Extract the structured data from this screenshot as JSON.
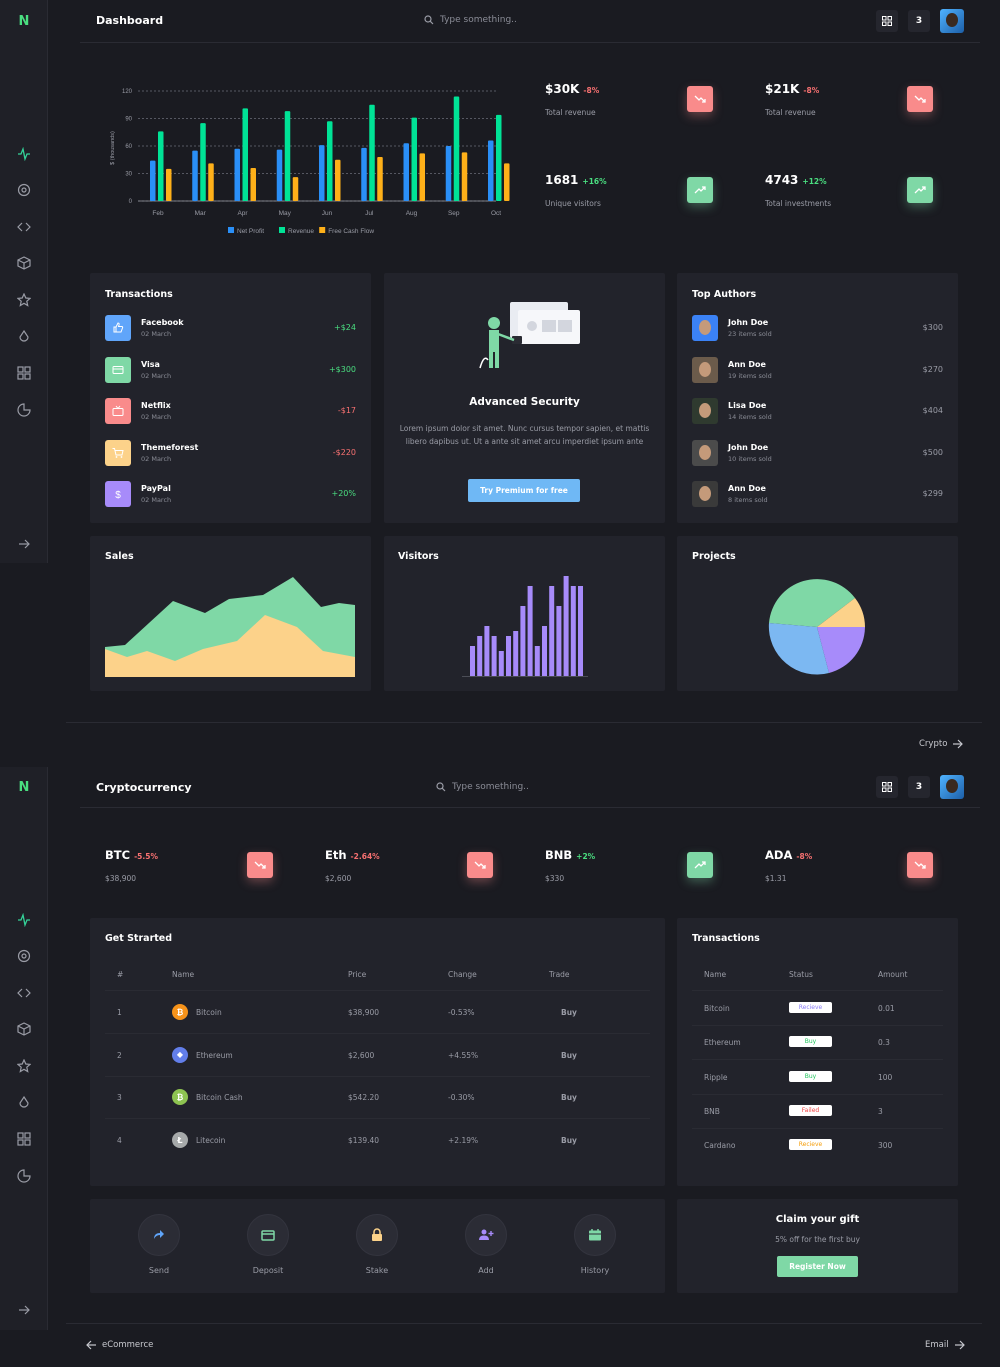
{
  "brand": {
    "logo_letter": "N",
    "accent": "#4ade80"
  },
  "dashboard": {
    "title": "Dashboard",
    "search_placeholder": "Type something..",
    "notif_count": "3",
    "chart_data": {
      "type": "bar",
      "categories": [
        "Feb",
        "Mar",
        "Apr",
        "May",
        "Jun",
        "Jul",
        "Aug",
        "Sep",
        "Oct"
      ],
      "series": [
        {
          "name": "Net Profit",
          "color": "#2a8ff7",
          "values": [
            44,
            55,
            57,
            56,
            61,
            58,
            63,
            60,
            66
          ]
        },
        {
          "name": "Revenue",
          "color": "#00e396",
          "values": [
            76,
            85,
            101,
            98,
            87,
            105,
            91,
            114,
            94
          ]
        },
        {
          "name": "Free Cash Flow",
          "color": "#feb019",
          "values": [
            35,
            41,
            36,
            26,
            45,
            48,
            52,
            53,
            41
          ]
        }
      ],
      "ylabel": "$ (thousands)",
      "yticks": [
        "0",
        "30",
        "60",
        "90",
        "120"
      ],
      "ylim": [
        0,
        120
      ]
    },
    "stats": [
      {
        "value": "$30K",
        "change": "-8%",
        "label": "Total revenue",
        "trend": "down"
      },
      {
        "value": "$21K",
        "change": "-8%",
        "label": "Total revenue",
        "trend": "down"
      },
      {
        "value": "1681",
        "change": "+16%",
        "label": "Unique visitors",
        "trend": "up"
      },
      {
        "value": "4743",
        "change": "+12%",
        "label": "Total investments",
        "trend": "up"
      }
    ],
    "transactions": {
      "title": "Transactions",
      "items": [
        {
          "name": "Facebook",
          "date": "02 March",
          "amount": "+$24",
          "color": "#60a5fa",
          "icon": "thumbs-up-icon"
        },
        {
          "name": "Visa",
          "date": "02 March",
          "amount": "+$300",
          "color": "#7fd8a6",
          "icon": "credit-card-icon"
        },
        {
          "name": "Netflix",
          "date": "02 March",
          "amount": "-$17",
          "color": "#f98b8b",
          "icon": "tv-icon"
        },
        {
          "name": "Themeforest",
          "date": "02 March",
          "amount": "-$220",
          "color": "#fcd28a",
          "icon": "cart-icon"
        },
        {
          "name": "PayPal",
          "date": "02 March",
          "amount": "+20%",
          "color": "#a78bfa",
          "icon": "dollar-icon"
        }
      ]
    },
    "security": {
      "title": "Advanced Security",
      "text": "Lorem ipsum dolor sit amet. Nunc cursus tempor sapien, et mattis libero dapibus ut. Ut a ante sit amet arcu imperdiet ipsum ante",
      "button": "Try Premium for free"
    },
    "authors": {
      "title": "Top Authors",
      "items": [
        {
          "name": "John Doe",
          "sold": "23 items sold",
          "amount": "$300"
        },
        {
          "name": "Ann Doe",
          "sold": "19 items sold",
          "amount": "$270"
        },
        {
          "name": "Lisa Doe",
          "sold": "14 items sold",
          "amount": "$404"
        },
        {
          "name": "John Doe",
          "sold": "10 items sold",
          "amount": "$500"
        },
        {
          "name": "Ann Doe",
          "sold": "8 items sold",
          "amount": "$299"
        }
      ]
    },
    "sales_title": "Sales",
    "visitors_title": "Visitors",
    "projects_title": "Projects",
    "next_link": "Crypto"
  },
  "crypto": {
    "title": "Cryptocurrency",
    "search_placeholder": "Type something..",
    "notif_count": "3",
    "coins": [
      {
        "symbol": "BTC",
        "change": "-5.5%",
        "price": "$38,900",
        "trend": "down"
      },
      {
        "symbol": "Eth",
        "change": "-2.64%",
        "price": "$2,600",
        "trend": "down"
      },
      {
        "symbol": "BNB",
        "change": "+2%",
        "price": "$330",
        "trend": "up"
      },
      {
        "symbol": "ADA",
        "change": "-8%",
        "price": "$1.31",
        "trend": "down"
      }
    ],
    "get_started": {
      "title": "Get Strarted",
      "headers": [
        "#",
        "Name",
        "Price",
        "Change",
        "Trade"
      ],
      "rows": [
        {
          "num": "1",
          "name": "Bitcoin",
          "price": "$38,900",
          "change": "-0.53%",
          "trade": "Buy",
          "color": "#f7931a",
          "glyph": "₿"
        },
        {
          "num": "2",
          "name": "Ethereum",
          "price": "$2,600",
          "change": "+4.55%",
          "trade": "Buy",
          "color": "#627eea",
          "glyph": "◆"
        },
        {
          "num": "3",
          "name": "Bitcoin Cash",
          "price": "$542.20",
          "change": "-0.30%",
          "trade": "Buy",
          "color": "#8dc351",
          "glyph": "₿"
        },
        {
          "num": "4",
          "name": "Litecoin",
          "price": "$139.40",
          "change": "+2.19%",
          "trade": "Buy",
          "color": "#a6a9aa",
          "glyph": "Ł"
        }
      ]
    },
    "transactions": {
      "title": "Transactions",
      "headers": [
        "Name",
        "Status",
        "Amount"
      ],
      "rows": [
        {
          "name": "Bitcoin",
          "status": "Recieve",
          "amount": "0.01",
          "status_color": "#8b7cf6"
        },
        {
          "name": "Ethereum",
          "status": "Buy",
          "amount": "0.3",
          "status_color": "#22c55e"
        },
        {
          "name": "Ripple",
          "status": "Buy",
          "amount": "100",
          "status_color": "#22c55e"
        },
        {
          "name": "BNB",
          "status": "Failed",
          "amount": "3",
          "status_color": "#ef4444"
        },
        {
          "name": "Cardano",
          "status": "Recieve",
          "amount": "300",
          "status_color": "#f59e0b"
        }
      ]
    },
    "actions": [
      {
        "label": "Send",
        "icon": "share-icon",
        "color": "#60a5fa"
      },
      {
        "label": "Deposit",
        "icon": "card-icon",
        "color": "#7fd8a6"
      },
      {
        "label": "Stake",
        "icon": "lock-icon",
        "color": "#fcd28a"
      },
      {
        "label": "Add",
        "icon": "add-user-icon",
        "color": "#a78bfa"
      },
      {
        "label": "History",
        "icon": "calendar-icon",
        "color": "#7fd8a6"
      }
    ],
    "gift": {
      "title": "Claim your gift",
      "subtitle": "5% off for the first buy",
      "button": "Register Now"
    },
    "prev_link": "eCommerce",
    "next_link": "Email"
  }
}
